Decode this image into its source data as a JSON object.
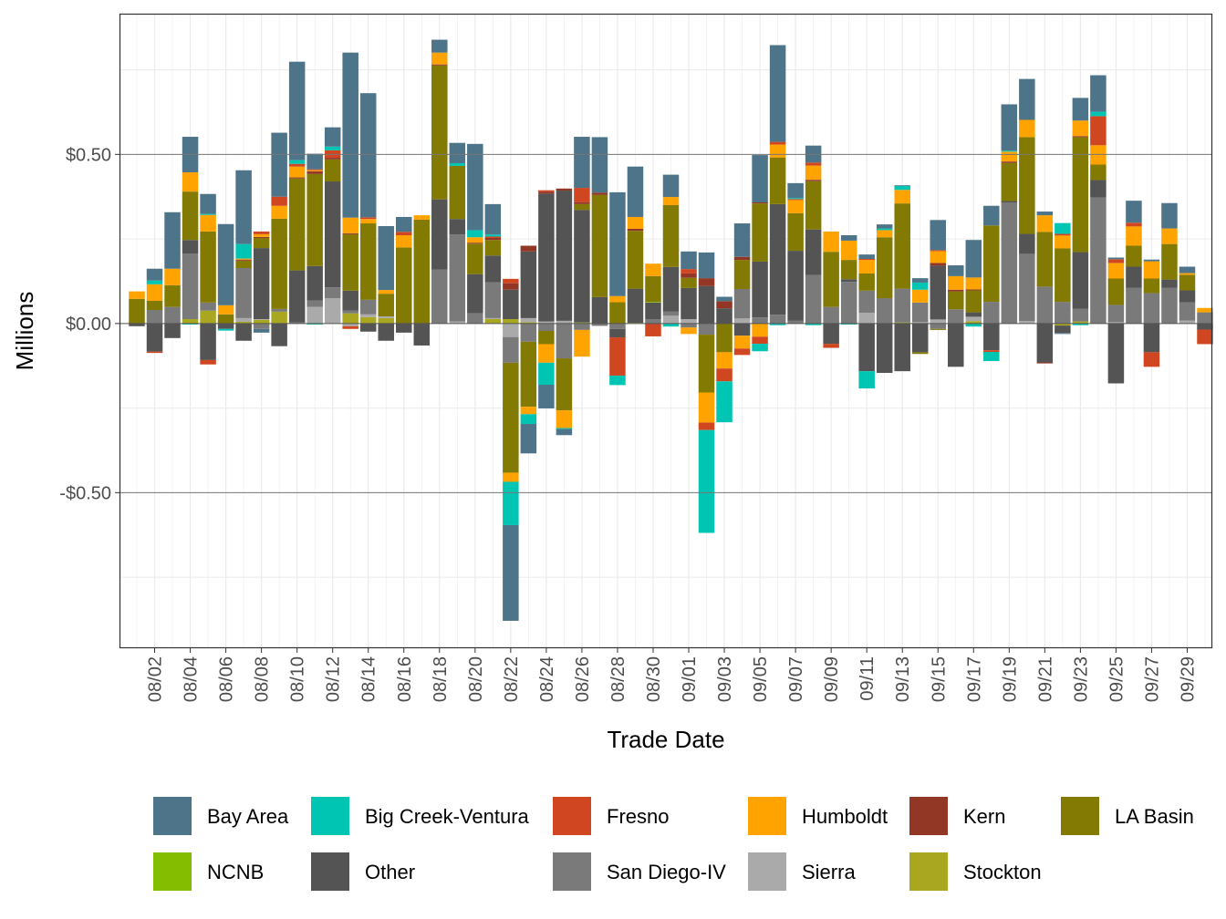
{
  "chart_data": {
    "type": "bar",
    "stacked": true,
    "xlabel": "Trade Date",
    "ylabel": "Millions",
    "ylim": [
      -0.96,
      0.916
    ],
    "y_ticks": [
      {
        "value": 0.5,
        "label": "$0.50"
      },
      {
        "value": 0.0,
        "label": "$0.00"
      },
      {
        "value": -0.5,
        "label": "-$0.50"
      }
    ],
    "grid": true,
    "legend_position": "bottom",
    "dates": [
      "08/01",
      "08/02",
      "08/03",
      "08/04",
      "08/05",
      "08/06",
      "08/07",
      "08/08",
      "08/09",
      "08/10",
      "08/11",
      "08/12",
      "08/13",
      "08/14",
      "08/15",
      "08/16",
      "08/17",
      "08/18",
      "08/19",
      "08/20",
      "08/21",
      "08/22",
      "08/23",
      "08/24",
      "08/25",
      "08/26",
      "08/27",
      "08/28",
      "08/29",
      "08/30",
      "08/31",
      "09/01",
      "09/02",
      "09/03",
      "09/04",
      "09/05",
      "09/06",
      "09/07",
      "09/08",
      "09/09",
      "09/10",
      "09/11",
      "09/12",
      "09/13",
      "09/14",
      "09/15",
      "09/16",
      "09/17",
      "09/18",
      "09/19",
      "09/20",
      "09/21",
      "09/22",
      "09/23",
      "09/24",
      "09/25",
      "09/26",
      "09/27",
      "09/28",
      "09/29",
      "09/30"
    ],
    "x_tick_labels": [
      "08/02",
      "08/04",
      "08/06",
      "08/08",
      "08/10",
      "08/12",
      "08/14",
      "08/16",
      "08/18",
      "08/20",
      "08/22",
      "08/24",
      "08/26",
      "08/28",
      "08/30",
      "09/01",
      "09/03",
      "09/05",
      "09/07",
      "09/09",
      "09/11",
      "09/13",
      "09/15",
      "09/17",
      "09/19",
      "09/21",
      "09/23",
      "09/25",
      "09/27",
      "09/29"
    ],
    "series": [
      {
        "name": "Bay Area",
        "color": "#4e7489",
        "values": [
          0,
          0.035,
          0.167,
          0.105,
          0.059,
          0.24,
          0.218,
          -0.011,
          0.189,
          0.291,
          0.046,
          0.057,
          0.488,
          0.367,
          0.189,
          0.044,
          0,
          0.038,
          0.06,
          0.255,
          0.09,
          -0.283,
          -0.087,
          -0.07,
          -0.018,
          0.151,
          0.164,
          0.307,
          0.149,
          0,
          0.066,
          0.052,
          0.076,
          0.013,
          0.099,
          0.14,
          0.286,
          0.044,
          0.05,
          0,
          0.016,
          0.013,
          0.012,
          0.002,
          0.013,
          0.089,
          0.032,
          0.111,
          0.058,
          0.137,
          0.121,
          0.011,
          -0.003,
          0.067,
          0.108,
          0.005,
          0.065,
          0.005,
          0.075,
          0.019,
          0
        ]
      },
      {
        "name": "Big Creek-Ventura",
        "color": "#00c5b3",
        "values": [
          0,
          0.011,
          0,
          -0.003,
          0.003,
          -0.005,
          0.043,
          0,
          0,
          0.011,
          -0.003,
          0.011,
          0,
          0,
          0,
          0,
          0,
          0,
          0.008,
          0.021,
          0.006,
          -0.128,
          -0.029,
          -0.065,
          -0.003,
          0,
          0,
          -0.028,
          0,
          0,
          -0.009,
          0,
          -0.304,
          -0.121,
          0,
          -0.022,
          -0.005,
          0.003,
          -0.005,
          0,
          -0.003,
          -0.051,
          0.005,
          0.012,
          0.021,
          0,
          0,
          -0.009,
          -0.027,
          0.003,
          0,
          0,
          0.032,
          -0.005,
          0.013,
          0,
          0,
          0,
          0,
          0,
          0
        ]
      },
      {
        "name": "Fresno",
        "color": "#d04620",
        "values": [
          0,
          -0.004,
          0,
          0,
          -0.013,
          0,
          0,
          0.008,
          0.027,
          0.008,
          0.003,
          0.022,
          -0.008,
          0.005,
          0,
          0.01,
          0,
          0,
          0,
          0,
          0.004,
          0.013,
          0,
          0.004,
          0,
          0.042,
          0,
          -0.113,
          0,
          -0.038,
          0,
          0.013,
          -0.022,
          -0.038,
          -0.019,
          -0.021,
          0.008,
          0.003,
          0.009,
          -0.012,
          0,
          0.003,
          0,
          0,
          0,
          0.003,
          0,
          0,
          -0.005,
          0,
          0,
          0,
          0.005,
          0,
          0.086,
          0.011,
          0.011,
          -0.043,
          0,
          0,
          -0.043
        ]
      },
      {
        "name": "Humboldt",
        "color": "#ffa300",
        "values": [
          0.022,
          0.049,
          0.049,
          0.057,
          0.049,
          0.027,
          0.003,
          0.008,
          0.038,
          0.032,
          0.003,
          0,
          0.046,
          0.013,
          0.011,
          0.036,
          0.013,
          0.035,
          0,
          0.016,
          0,
          -0.027,
          -0.022,
          -0.055,
          -0.052,
          -0.079,
          0,
          0.018,
          0.035,
          0.037,
          0.024,
          -0.019,
          -0.089,
          -0.048,
          -0.038,
          -0.039,
          0.038,
          0.039,
          0.042,
          0.06,
          0.057,
          0.04,
          0.021,
          0.04,
          0.038,
          0.035,
          0.04,
          0.035,
          0,
          0.029,
          0.051,
          0.049,
          0.038,
          0.046,
          0.057,
          0.046,
          0.057,
          0.051,
          0.046,
          0.005,
          0.013
        ]
      },
      {
        "name": "Kern",
        "color": "#923726",
        "values": [
          0,
          0,
          0,
          0,
          0,
          0,
          0.003,
          0.003,
          0,
          0.003,
          0.008,
          0.005,
          0.003,
          0,
          0,
          0,
          0,
          0.003,
          0,
          0.003,
          0.006,
          0.019,
          0.017,
          0.006,
          0.006,
          0.006,
          0.007,
          0,
          0.006,
          0,
          0,
          0.013,
          0.023,
          0.021,
          0.009,
          0.003,
          0,
          0,
          0.004,
          0,
          0,
          0,
          0,
          0,
          0,
          0.008,
          0.005,
          0.003,
          0,
          0.004,
          0,
          -0.003,
          0,
          0.003,
          0,
          0,
          0,
          0,
          0,
          0,
          0
        ]
      },
      {
        "name": "LA Basin",
        "color": "#837a04",
        "values": [
          0.073,
          0.027,
          0.064,
          0.143,
          0.21,
          0.027,
          0.022,
          0.03,
          0.267,
          0.272,
          0.272,
          0.065,
          0.167,
          0.226,
          0.067,
          0.225,
          0.307,
          0.396,
          0.157,
          0.09,
          0.046,
          -0.325,
          -0.192,
          -0.039,
          -0.154,
          0.017,
          0.302,
          0.063,
          0.171,
          0.076,
          0.183,
          0.03,
          -0.171,
          -0.085,
          0.086,
          0.172,
          0.138,
          0.111,
          0.143,
          0.163,
          0.057,
          0.051,
          0.18,
          0.252,
          -0.005,
          -0.003,
          0.053,
          0.065,
          0.226,
          0.113,
          0.286,
          0.162,
          0.158,
          0.34,
          0.046,
          0.078,
          0.062,
          0.043,
          0.105,
          0.046,
          0
        ]
      },
      {
        "name": "NCNB",
        "color": "#84bd00",
        "values": [
          0,
          0,
          0,
          0,
          0,
          0,
          0,
          0,
          0,
          0,
          0,
          0,
          0,
          0,
          0,
          0,
          0,
          0,
          0,
          0,
          0,
          0,
          0,
          0,
          0,
          0,
          0,
          0,
          0,
          0.002,
          0,
          0,
          0,
          0,
          0,
          0,
          0,
          0,
          0,
          0,
          0,
          0,
          0,
          0,
          0,
          0,
          0,
          0,
          0,
          0,
          0,
          0,
          0,
          0,
          0,
          0,
          0,
          0,
          0,
          0,
          0
        ]
      },
      {
        "name": "Other",
        "color": "#545454",
        "values": [
          -0.008,
          -0.083,
          -0.043,
          0.04,
          -0.108,
          -0.016,
          -0.051,
          0.21,
          -0.067,
          0.154,
          0.102,
          0.313,
          0.059,
          -0.024,
          -0.051,
          -0.027,
          -0.065,
          0.207,
          0.046,
          0.116,
          0.079,
          0.087,
          0.197,
          0.378,
          0.385,
          0.333,
          0.078,
          -0.025,
          0.101,
          0.049,
          0.132,
          0.092,
          0.111,
          0.045,
          -0.036,
          0.165,
          0.327,
          0.207,
          0.135,
          -0.06,
          0.008,
          -0.141,
          -0.146,
          -0.141,
          -0.085,
          0.159,
          -0.128,
          0.013,
          -0.079,
          0.004,
          0.059,
          -0.115,
          -0.022,
          0.167,
          0.051,
          -0.177,
          0.062,
          -0.085,
          0.024,
          0.035,
          -0.018
        ]
      },
      {
        "name": "San Diego-IV",
        "color": "#7a7a7a",
        "values": [
          0,
          0.04,
          0.049,
          0.194,
          0.024,
          0,
          0.148,
          -0.016,
          0.008,
          0.003,
          0.019,
          0.032,
          0.008,
          0.043,
          0,
          0,
          0,
          0.16,
          0.257,
          0.03,
          0.106,
          -0.076,
          -0.054,
          -0.022,
          -0.103,
          -0.019,
          -0.007,
          -0.016,
          0,
          0.013,
          0.012,
          -0.012,
          -0.033,
          0,
          0.087,
          0.018,
          0.026,
          0.008,
          0.143,
          0.049,
          0.123,
          0.065,
          0.075,
          0.1,
          0.058,
          -0.016,
          0.042,
          0,
          0.064,
          0.358,
          0.199,
          0.109,
          0.064,
          0.038,
          0.373,
          0.051,
          0.106,
          0.09,
          0.106,
          0.054,
          0.033
        ]
      },
      {
        "name": "Sierra",
        "color": "#aaaaaa",
        "values": [
          0,
          0,
          0,
          0,
          0,
          0,
          0.011,
          0.002,
          0,
          0,
          0.049,
          0.075,
          -0.008,
          0.008,
          0.005,
          0,
          0,
          0,
          0.006,
          0,
          0.003,
          -0.04,
          0.012,
          0.006,
          0.008,
          0,
          0,
          0,
          0,
          0,
          0.023,
          0.013,
          0,
          0,
          0.015,
          0,
          0,
          0,
          0,
          0,
          0,
          0.032,
          0,
          0,
          0.004,
          0.012,
          0,
          0.013,
          0,
          0,
          0.007,
          0,
          0,
          0,
          0,
          0.004,
          0,
          0,
          0,
          0.009,
          0
        ]
      },
      {
        "name": "Stockton",
        "color": "#a8a71f",
        "values": [
          0,
          0,
          0,
          0.013,
          0.038,
          0,
          0.005,
          0.011,
          0.035,
          0,
          0,
          0,
          0.03,
          0.019,
          0.016,
          0,
          0,
          0,
          0,
          0,
          0.013,
          0.013,
          0.004,
          0,
          0,
          0.003,
          0,
          0,
          0.002,
          0,
          0,
          0,
          0,
          0,
          0,
          0,
          0,
          0,
          0,
          0,
          0,
          0,
          0,
          0.003,
          0,
          0,
          0,
          0.007,
          0,
          0,
          0,
          0,
          -0.006,
          0.006,
          0,
          0,
          0,
          0,
          0,
          0,
          0
        ]
      }
    ]
  }
}
